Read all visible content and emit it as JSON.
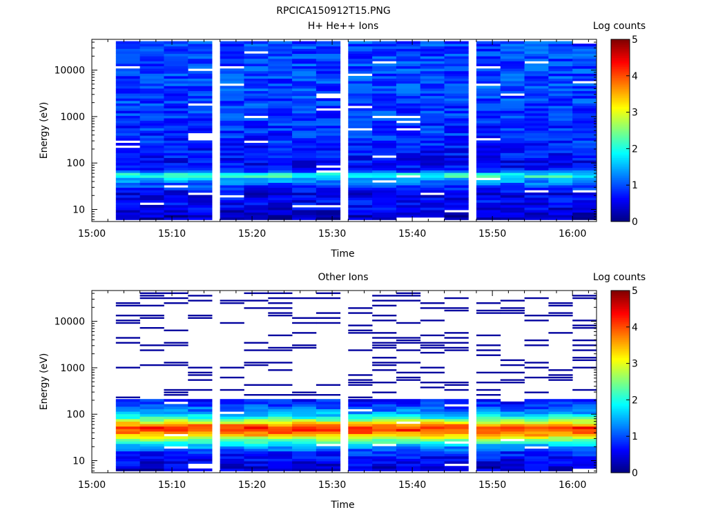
{
  "figure_title": "RPCICA150912T15.PNG",
  "chart_data": [
    {
      "type": "heatmap",
      "title": "H+ He++ Ions",
      "xlabel": "Time",
      "ylabel": "Energy (eV)",
      "x_ticks": [
        "15:00",
        "15:10",
        "15:20",
        "15:30",
        "15:40",
        "15:50",
        "16:00"
      ],
      "y_scale": "log",
      "y_ticks": [
        "10",
        "100",
        "1000",
        "10000"
      ],
      "ylim": [
        5.5,
        46000
      ],
      "xlim": [
        "15:00",
        "16:03"
      ],
      "colorbar": {
        "label": "Log counts",
        "range": [
          0,
          5
        ],
        "ticks": [
          "0",
          "1",
          "2",
          "3",
          "4",
          "5"
        ]
      },
      "time_columns": [
        "15:03",
        "15:06",
        "15:09",
        "15:12",
        "15:16",
        "15:19",
        "15:22",
        "15:25",
        "15:28",
        "15:32",
        "15:35",
        "15:38",
        "15:41",
        "15:44",
        "15:48",
        "15:51",
        "15:54",
        "15:57",
        "16:00"
      ],
      "spectrum_profile": [
        {
          "energy_ev": 7,
          "log_counts": 0.3
        },
        {
          "energy_ev": 10,
          "log_counts": 0.5
        },
        {
          "energy_ev": 15,
          "log_counts": 0.6
        },
        {
          "energy_ev": 22,
          "log_counts": 0.5
        },
        {
          "energy_ev": 32,
          "log_counts": 0.9
        },
        {
          "energy_ev": 45,
          "log_counts": 1.5
        },
        {
          "energy_ev": 55,
          "log_counts": 2.2
        },
        {
          "energy_ev": 70,
          "log_counts": 0.7
        },
        {
          "energy_ev": 100,
          "log_counts": 0.6
        },
        {
          "energy_ev": 300,
          "log_counts": 0.8
        },
        {
          "energy_ev": 1000,
          "log_counts": 0.9
        },
        {
          "energy_ev": 5000,
          "log_counts": 0.95
        },
        {
          "energy_ev": 40000,
          "log_counts": 0.95
        }
      ],
      "fill": "full"
    },
    {
      "type": "heatmap",
      "title": "Other Ions",
      "xlabel": "Time",
      "ylabel": "Energy (eV)",
      "x_ticks": [
        "15:00",
        "15:10",
        "15:20",
        "15:30",
        "15:40",
        "15:50",
        "16:00"
      ],
      "y_scale": "log",
      "y_ticks": [
        "10",
        "100",
        "1000",
        "10000"
      ],
      "ylim": [
        5.5,
        46000
      ],
      "xlim": [
        "15:00",
        "16:03"
      ],
      "colorbar": {
        "label": "Log counts",
        "range": [
          0,
          5
        ],
        "ticks": [
          "0",
          "1",
          "2",
          "3",
          "4",
          "5"
        ]
      },
      "time_columns": [
        "15:03",
        "15:06",
        "15:09",
        "15:12",
        "15:16",
        "15:19",
        "15:22",
        "15:25",
        "15:28",
        "15:32",
        "15:35",
        "15:38",
        "15:41",
        "15:44",
        "15:48",
        "15:51",
        "15:54",
        "15:57",
        "16:00"
      ],
      "spectrum_profile": [
        {
          "energy_ev": 7,
          "log_counts": 0.4
        },
        {
          "energy_ev": 10,
          "log_counts": 0.6
        },
        {
          "energy_ev": 15,
          "log_counts": 0.8
        },
        {
          "energy_ev": 22,
          "log_counts": 1.6
        },
        {
          "energy_ev": 30,
          "log_counts": 2.8
        },
        {
          "energy_ev": 40,
          "log_counts": 3.8
        },
        {
          "energy_ev": 50,
          "log_counts": 4.3
        },
        {
          "energy_ev": 65,
          "log_counts": 3.2
        },
        {
          "energy_ev": 85,
          "log_counts": 2.0
        },
        {
          "energy_ev": 120,
          "log_counts": 1.2
        },
        {
          "energy_ev": 190,
          "log_counts": 0.7
        }
      ],
      "fill": "sparse_above_200"
    }
  ]
}
